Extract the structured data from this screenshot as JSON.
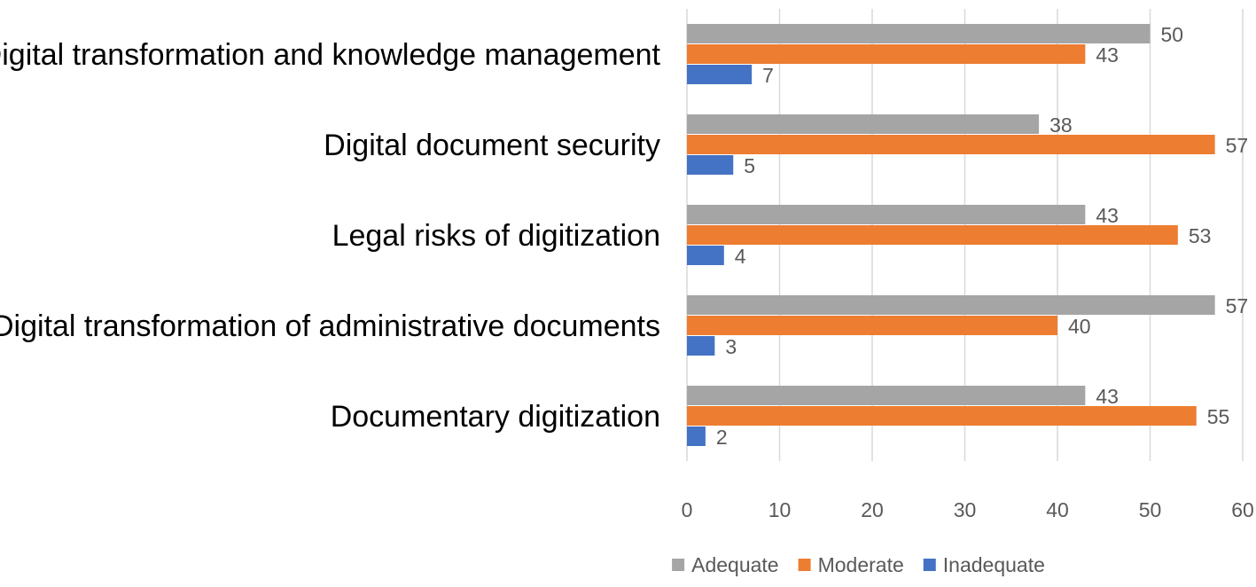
{
  "chart_data": {
    "type": "bar",
    "orientation": "horizontal",
    "categories": [
      "Digital transformation and knowledge management",
      "Digital document security",
      "Legal risks of digitization",
      "Digital transformation of administrative documents",
      "Documentary digitization"
    ],
    "series": [
      {
        "name": "Adequate",
        "color": "#a5a5a5",
        "values": [
          50,
          38,
          43,
          57,
          43
        ]
      },
      {
        "name": "Moderate",
        "color": "#ed7d31",
        "values": [
          43,
          57,
          53,
          40,
          55
        ]
      },
      {
        "name": "Inadequate",
        "color": "#4472c4",
        "values": [
          7,
          5,
          4,
          3,
          2
        ]
      }
    ],
    "xlim": [
      0,
      60
    ],
    "xticks": [
      0,
      10,
      20,
      30,
      40,
      50,
      60
    ],
    "grid": true,
    "legend_position": "bottom",
    "data_labels": true
  }
}
